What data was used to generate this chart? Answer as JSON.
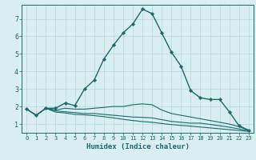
{
  "xlabel": "Humidex (Indice chaleur)",
  "ylabel": "",
  "background_color": "#d8eef0",
  "grid_color": "#b8d8dc",
  "line_color": "#1a6b6b",
  "xlim": [
    -0.5,
    23.5
  ],
  "ylim": [
    0.5,
    7.8
  ],
  "xticks": [
    0,
    1,
    2,
    3,
    4,
    5,
    6,
    7,
    8,
    9,
    10,
    11,
    12,
    13,
    14,
    15,
    16,
    17,
    18,
    19,
    20,
    21,
    22,
    23
  ],
  "yticks": [
    1,
    2,
    3,
    4,
    5,
    6,
    7
  ],
  "lines": [
    {
      "x": [
        0,
        1,
        2,
        3,
        4,
        5,
        6,
        7,
        8,
        9,
        10,
        11,
        12,
        13,
        14,
        15,
        16,
        17,
        18,
        19,
        20,
        21,
        22,
        23
      ],
      "y": [
        1.85,
        1.5,
        1.9,
        1.9,
        2.2,
        2.05,
        3.0,
        3.5,
        4.7,
        5.5,
        6.2,
        6.7,
        7.55,
        7.3,
        6.2,
        5.1,
        4.3,
        2.9,
        2.5,
        2.4,
        2.4,
        1.7,
        0.9,
        0.65
      ],
      "marker": true,
      "linewidth": 1.0
    },
    {
      "x": [
        0,
        1,
        2,
        3,
        4,
        5,
        6,
        7,
        8,
        9,
        10,
        11,
        12,
        13,
        14,
        15,
        16,
        17,
        18,
        19,
        20,
        21,
        22,
        23
      ],
      "y": [
        1.85,
        1.5,
        1.9,
        1.8,
        1.9,
        1.85,
        1.85,
        1.9,
        1.95,
        2.0,
        2.0,
        2.1,
        2.15,
        2.1,
        1.8,
        1.6,
        1.5,
        1.4,
        1.3,
        1.2,
        1.1,
        1.0,
        0.85,
        0.65
      ],
      "marker": false,
      "linewidth": 0.8
    },
    {
      "x": [
        0,
        1,
        2,
        3,
        4,
        5,
        6,
        7,
        8,
        9,
        10,
        11,
        12,
        13,
        14,
        15,
        16,
        17,
        18,
        19,
        20,
        21,
        22,
        23
      ],
      "y": [
        1.85,
        1.5,
        1.9,
        1.75,
        1.7,
        1.65,
        1.6,
        1.6,
        1.55,
        1.5,
        1.45,
        1.4,
        1.38,
        1.35,
        1.25,
        1.15,
        1.1,
        1.05,
        1.05,
        0.98,
        0.9,
        0.82,
        0.72,
        0.62
      ],
      "marker": false,
      "linewidth": 0.8
    },
    {
      "x": [
        0,
        1,
        2,
        3,
        4,
        5,
        6,
        7,
        8,
        9,
        10,
        11,
        12,
        13,
        14,
        15,
        16,
        17,
        18,
        19,
        20,
        21,
        22,
        23
      ],
      "y": [
        1.85,
        1.5,
        1.9,
        1.68,
        1.63,
        1.55,
        1.52,
        1.48,
        1.42,
        1.35,
        1.27,
        1.2,
        1.14,
        1.1,
        1.03,
        0.97,
        0.92,
        0.88,
        0.83,
        0.78,
        0.73,
        0.68,
        0.63,
        0.58
      ],
      "marker": false,
      "linewidth": 0.8
    }
  ]
}
